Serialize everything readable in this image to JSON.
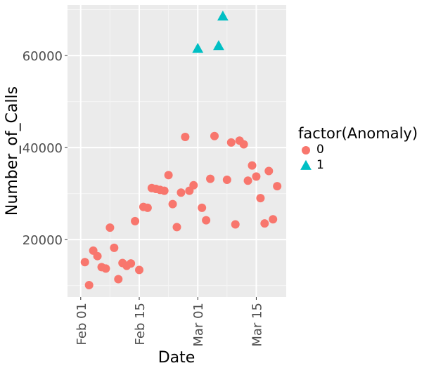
{
  "chart_data": {
    "type": "scatter",
    "title": "",
    "xlabel": "Date",
    "ylabel": "Number_of_Calls",
    "x_ticks": [
      "Feb 01",
      "Feb 15",
      "Mar 01",
      "Mar 15"
    ],
    "y_ticks": [
      "20000",
      "40000",
      "60000"
    ],
    "xlim": [
      "2017-01-31",
      "2017-03-20"
    ],
    "ylim": [
      7500,
      71000
    ],
    "grid": true,
    "legend": {
      "title": "factor(Anomaly)",
      "position": "right"
    },
    "series": [
      {
        "name": "0",
        "color": "#F8766D",
        "shape": "circle",
        "points": [
          {
            "x": "2017-02-02",
            "y": 15100
          },
          {
            "x": "2017-02-03",
            "y": 10100
          },
          {
            "x": "2017-02-04",
            "y": 17600
          },
          {
            "x": "2017-02-05",
            "y": 16400
          },
          {
            "x": "2017-02-06",
            "y": 14000
          },
          {
            "x": "2017-02-07",
            "y": 13700
          },
          {
            "x": "2017-02-08",
            "y": 22600
          },
          {
            "x": "2017-02-09",
            "y": 18200
          },
          {
            "x": "2017-02-10",
            "y": 11400
          },
          {
            "x": "2017-02-11",
            "y": 14900
          },
          {
            "x": "2017-02-12",
            "y": 14300
          },
          {
            "x": "2017-02-13",
            "y": 14800
          },
          {
            "x": "2017-02-14",
            "y": 24000
          },
          {
            "x": "2017-02-15",
            "y": 13400
          },
          {
            "x": "2017-02-16",
            "y": 27100
          },
          {
            "x": "2017-02-17",
            "y": 26900
          },
          {
            "x": "2017-02-18",
            "y": 31200
          },
          {
            "x": "2017-02-19",
            "y": 31000
          },
          {
            "x": "2017-02-20",
            "y": 30800
          },
          {
            "x": "2017-02-21",
            "y": 30600
          },
          {
            "x": "2017-02-22",
            "y": 34000
          },
          {
            "x": "2017-02-23",
            "y": 27700
          },
          {
            "x": "2017-02-24",
            "y": 22700
          },
          {
            "x": "2017-02-25",
            "y": 30200
          },
          {
            "x": "2017-02-26",
            "y": 42300
          },
          {
            "x": "2017-02-27",
            "y": 30600
          },
          {
            "x": "2017-02-28",
            "y": 31800
          },
          {
            "x": "2017-03-02",
            "y": 26900
          },
          {
            "x": "2017-03-03",
            "y": 24200
          },
          {
            "x": "2017-03-04",
            "y": 33200
          },
          {
            "x": "2017-03-05",
            "y": 42500
          },
          {
            "x": "2017-03-08",
            "y": 33000
          },
          {
            "x": "2017-03-09",
            "y": 41100
          },
          {
            "x": "2017-03-10",
            "y": 23300
          },
          {
            "x": "2017-03-11",
            "y": 41500
          },
          {
            "x": "2017-03-12",
            "y": 40700
          },
          {
            "x": "2017-03-13",
            "y": 32800
          },
          {
            "x": "2017-03-14",
            "y": 36100
          },
          {
            "x": "2017-03-15",
            "y": 33700
          },
          {
            "x": "2017-03-16",
            "y": 29000
          },
          {
            "x": "2017-03-17",
            "y": 23500
          },
          {
            "x": "2017-03-18",
            "y": 34900
          },
          {
            "x": "2017-03-19",
            "y": 24400
          },
          {
            "x": "2017-03-20",
            "y": 31600
          }
        ]
      },
      {
        "name": "1",
        "color": "#00BFC4",
        "shape": "triangle",
        "points": [
          {
            "x": "2017-03-01",
            "y": 61500
          },
          {
            "x": "2017-03-06",
            "y": 62100
          },
          {
            "x": "2017-03-07",
            "y": 68500
          }
        ]
      }
    ]
  }
}
